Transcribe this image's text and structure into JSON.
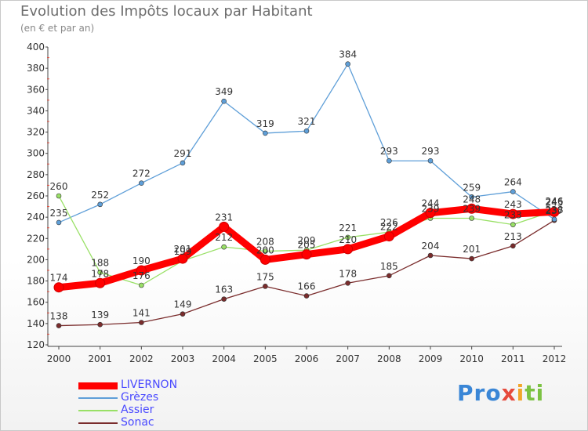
{
  "header": {
    "title": "Evolution des Impôts locaux par Habitant",
    "subtitle": "(en € et par an)"
  },
  "chart_data": {
    "type": "line",
    "title": "Evolution des Impôts locaux par Habitant",
    "subtitle": "(en € et par an)",
    "xlabel": "",
    "ylabel": "",
    "categories": [
      "2000",
      "2001",
      "2002",
      "2003",
      "2004",
      "2005",
      "2006",
      "2007",
      "2008",
      "2009",
      "2010",
      "2011",
      "2012"
    ],
    "yticks": [
      120,
      140,
      160,
      180,
      200,
      220,
      240,
      260,
      280,
      300,
      320,
      340,
      360,
      380,
      400
    ],
    "ylim": [
      120,
      400
    ],
    "grid": false,
    "legend": "bottom-left",
    "series": [
      {
        "name": "LIVERNON",
        "color": "#ff0000",
        "values": [
          174,
          178,
          190,
          201,
          231,
          200,
          205,
          210,
          222,
          244,
          248,
          243,
          245
        ]
      },
      {
        "name": "Grèzes",
        "color": "#5f9fd8",
        "values": [
          235,
          252,
          272,
          291,
          349,
          319,
          321,
          384,
          293,
          293,
          259,
          264,
          238
        ]
      },
      {
        "name": "Assier",
        "color": "#99e066",
        "values": [
          260,
          188,
          176,
          199,
          212,
          208,
          209,
          221,
          226,
          239,
          239,
          233,
          246
        ]
      },
      {
        "name": "Sonac",
        "color": "#7a2c2c",
        "values": [
          138,
          139,
          141,
          149,
          163,
          175,
          166,
          178,
          185,
          204,
          201,
          213,
          237
        ]
      }
    ]
  },
  "legend": {
    "items": [
      {
        "label": "LIVERNON",
        "color": "#ff0000"
      },
      {
        "label": "Grèzes",
        "color": "#5f9fd8"
      },
      {
        "label": "Assier",
        "color": "#99e066"
      },
      {
        "label": "Sonac",
        "color": "#7a2c2c"
      }
    ]
  },
  "logo": {
    "p1": "Pro",
    "p2": "x",
    "p3": "i",
    "p4": "ti"
  }
}
